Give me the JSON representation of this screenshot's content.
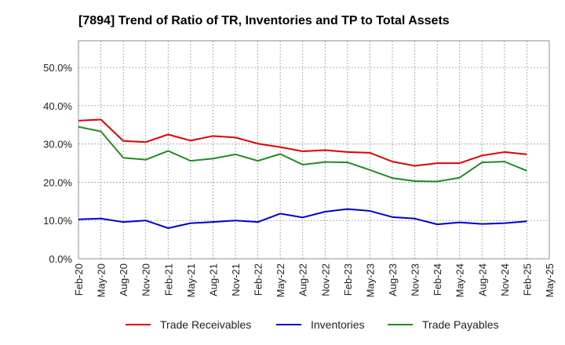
{
  "chart_data": {
    "type": "line",
    "title": "[7894]  Trend of Ratio of TR, Inventories and TP to Total Assets",
    "xlabel": "",
    "ylabel": "",
    "ylim": [
      0,
      0.57
    ],
    "y_ticks": [
      0,
      0.1,
      0.2,
      0.3,
      0.4,
      0.5
    ],
    "y_tick_labels": [
      "0.0%",
      "10.0%",
      "20.0%",
      "30.0%",
      "40.0%",
      "50.0%"
    ],
    "x": [
      "Feb-20",
      "May-20",
      "Aug-20",
      "Nov-20",
      "Feb-21",
      "May-21",
      "Aug-21",
      "Nov-21",
      "Feb-22",
      "May-22",
      "Aug-22",
      "Nov-22",
      "Feb-23",
      "May-23",
      "Aug-23",
      "Nov-23",
      "Feb-24",
      "May-24",
      "Aug-24",
      "Nov-24",
      "Feb-25",
      "May-25"
    ],
    "grid": true,
    "legend_position": "bottom",
    "series": [
      {
        "name": "Trade Receivables",
        "color": "#e00000",
        "values": [
          0.361,
          0.364,
          0.308,
          0.305,
          0.325,
          0.309,
          0.321,
          0.317,
          0.301,
          0.292,
          0.281,
          0.284,
          0.279,
          0.277,
          0.254,
          0.243,
          0.25,
          0.25,
          0.27,
          0.279,
          0.273,
          null
        ]
      },
      {
        "name": "Inventories",
        "color": "#0000cc",
        "values": [
          0.103,
          0.105,
          0.096,
          0.1,
          0.08,
          0.093,
          0.096,
          0.1,
          0.096,
          0.118,
          0.108,
          0.123,
          0.13,
          0.125,
          0.109,
          0.105,
          0.09,
          0.095,
          0.091,
          0.093,
          0.098,
          null
        ]
      },
      {
        "name": "Trade Payables",
        "color": "#228b22",
        "values": [
          0.345,
          0.333,
          0.264,
          0.259,
          0.282,
          0.256,
          0.262,
          0.273,
          0.256,
          0.274,
          0.246,
          0.253,
          0.252,
          0.232,
          0.211,
          0.203,
          0.202,
          0.212,
          0.252,
          0.254,
          0.23,
          null
        ]
      }
    ]
  }
}
